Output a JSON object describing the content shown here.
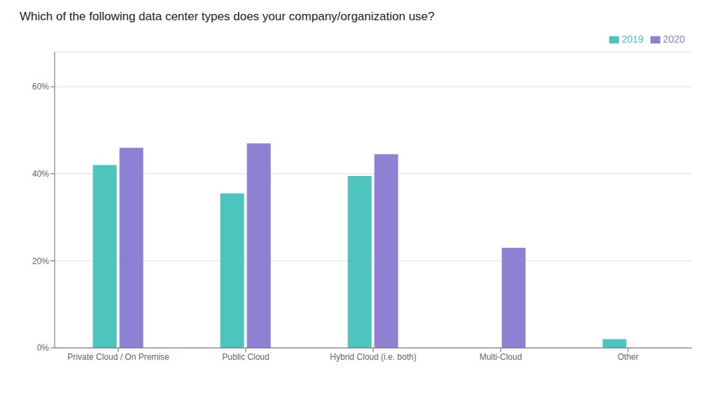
{
  "chart_data": {
    "type": "bar",
    "title": "Which of the following data center types does your company/organization use?",
    "categories": [
      "Private Cloud / On Premise",
      "Public Cloud",
      "Hybrid Cloud (i.e. both)",
      "Multi-Cloud",
      "Other"
    ],
    "series": [
      {
        "name": "2019",
        "color": "#4DC5BE",
        "values": [
          0.42,
          0.355,
          0.395,
          0.0,
          0.02
        ]
      },
      {
        "name": "2020",
        "color": "#9080D4",
        "values": [
          0.46,
          0.47,
          0.445,
          0.23,
          0.0
        ]
      }
    ],
    "ylim": [
      0,
      0.68
    ],
    "yticks": [
      {
        "value": 0.0,
        "label": "0%"
      },
      {
        "value": 0.2,
        "label": "20%"
      },
      {
        "value": 0.4,
        "label": "40%"
      },
      {
        "value": 0.6,
        "label": "60%"
      }
    ],
    "grid": true,
    "legend": "upper right"
  }
}
